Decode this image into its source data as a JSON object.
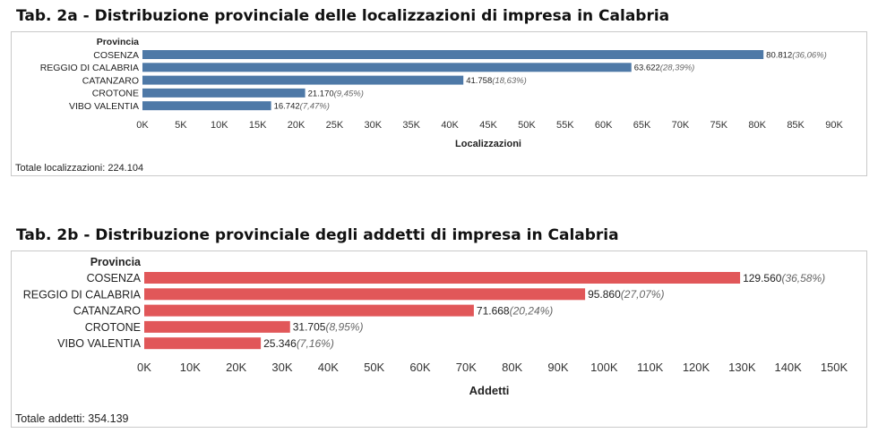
{
  "charts": [
    {
      "title": "Tab. 2a - Distribuzione provinciale delle localizzazioni di impresa in Calabria",
      "footer": "Totale localizzazioni: 224.104",
      "color": "#4e79a7",
      "chart_data": {
        "type": "bar",
        "orientation": "horizontal",
        "row_header": "Provincia",
        "categories": [
          "COSENZA",
          "REGGIO DI CALABRIA",
          "CATANZARO",
          "CROTONE",
          "VIBO VALENTIA"
        ],
        "values": [
          80812,
          63622,
          41758,
          21170,
          16742
        ],
        "value_labels": [
          "80.812",
          "63.622",
          "41.758",
          "21.170",
          "16.742"
        ],
        "pct_labels": [
          "(36,06%)",
          "(28,39%)",
          "(18,63%)",
          "(9,45%)",
          "(7,47%)"
        ],
        "xlabel": "Localizzazioni",
        "xlim": [
          0,
          90000
        ],
        "tick_values": [
          0,
          5000,
          10000,
          15000,
          20000,
          25000,
          30000,
          35000,
          40000,
          45000,
          50000,
          55000,
          60000,
          65000,
          70000,
          75000,
          80000,
          85000,
          90000
        ],
        "tick_labels": [
          "0K",
          "5K",
          "10K",
          "15K",
          "20K",
          "25K",
          "30K",
          "35K",
          "40K",
          "45K",
          "50K",
          "55K",
          "60K",
          "65K",
          "70K",
          "75K",
          "80K",
          "85K",
          "90K"
        ],
        "grid": false,
        "legend": "none"
      }
    },
    {
      "title": "Tab. 2b - Distribuzione provinciale degli addetti di impresa in Calabria",
      "footer": "Totale addetti: 354.139",
      "color": "#e15759",
      "chart_data": {
        "type": "bar",
        "orientation": "horizontal",
        "row_header": "Provincia",
        "categories": [
          "COSENZA",
          "REGGIO DI CALABRIA",
          "CATANZARO",
          "CROTONE",
          "VIBO VALENTIA"
        ],
        "values": [
          129560,
          95860,
          71668,
          31705,
          25346
        ],
        "value_labels": [
          "129.560",
          "95.860",
          "71.668",
          "31.705",
          "25.346"
        ],
        "pct_labels": [
          "(36,58%)",
          "(27,07%)",
          "(20,24%)",
          "(8,95%)",
          "(7,16%)"
        ],
        "xlabel": "Addetti",
        "xlim": [
          0,
          150000
        ],
        "tick_values": [
          0,
          10000,
          20000,
          30000,
          40000,
          50000,
          60000,
          70000,
          80000,
          90000,
          100000,
          110000,
          120000,
          130000,
          140000,
          150000
        ],
        "tick_labels": [
          "0K",
          "10K",
          "20K",
          "30K",
          "40K",
          "50K",
          "60K",
          "70K",
          "80K",
          "90K",
          "100K",
          "110K",
          "120K",
          "130K",
          "140K",
          "150K"
        ],
        "grid": false,
        "legend": "none"
      }
    }
  ]
}
